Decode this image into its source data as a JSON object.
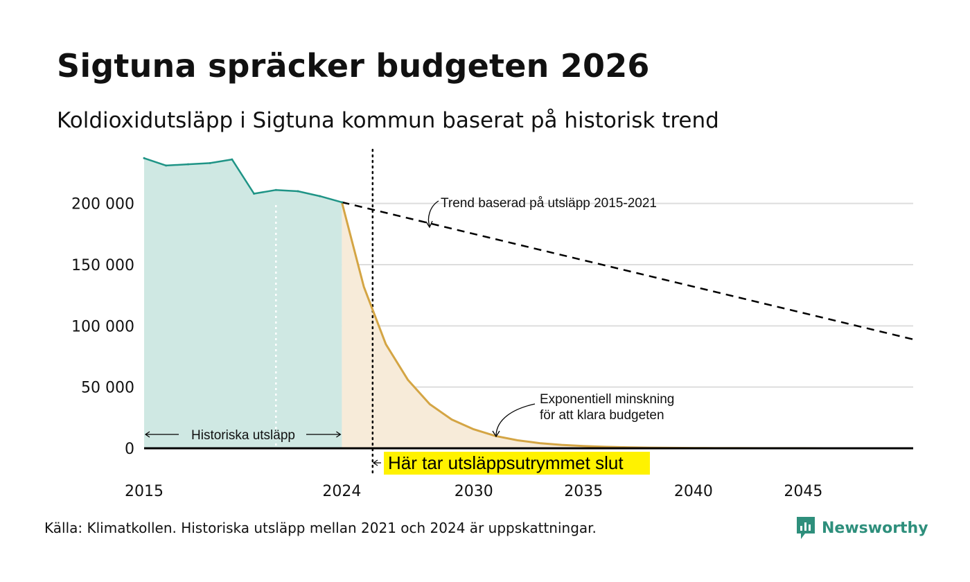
{
  "title": "Sigtuna spräcker budgeten 2026",
  "subtitle": "Koldioxidutsläpp i Sigtuna kommun baserat på historisk trend",
  "source": "Källa: Klimatkollen. Historiska utsläpp mellan 2021 och 2024 är uppskattningar.",
  "brand": "Newsworthy",
  "colors": {
    "historical": "#1f9486",
    "historical_fill": "#cfe8e3",
    "reduction": "#d4a544",
    "reduction_fill": "#f7ebd9",
    "trend": "#000000",
    "highlight": "#fff200",
    "grid": "#dddddd",
    "brand": "#2e8f7c"
  },
  "icons": [
    "newsworthy-logo-icon"
  ],
  "chart_data": {
    "type": "area",
    "xlim": [
      2015,
      2050
    ],
    "ylim": [
      0,
      240000
    ],
    "x_ticks": [
      2015,
      2024,
      2030,
      2035,
      2040,
      2045
    ],
    "x_tick_labels": [
      "2015",
      "2024",
      "2030",
      "2035",
      "2040",
      "2045"
    ],
    "y_ticks": [
      0,
      50000,
      100000,
      150000,
      200000
    ],
    "y_tick_labels": [
      "0",
      "50 000",
      "100 000",
      "150 000",
      "200 000"
    ],
    "grid": "horizontal",
    "series": [
      {
        "x": [
          2015,
          2016,
          2017,
          2018,
          2019,
          2020,
          2021,
          2022,
          2023,
          2024
        ],
        "y": [
          237000,
          231000,
          232000,
          233000,
          236000,
          208000,
          211000,
          210000,
          206000,
          201000
        ]
      },
      {
        "x": [
          2024,
          2025,
          2026,
          2027,
          2028,
          2029,
          2030,
          2031,
          2032,
          2033,
          2034,
          2035,
          2036,
          2037,
          2038,
          2039,
          2040,
          2041,
          2042,
          2043,
          2044,
          2045,
          2046,
          2047,
          2048,
          2049,
          2050
        ],
        "y": [
          201000,
          132000,
          85000,
          56000,
          36000,
          23500,
          15500,
          10000,
          6500,
          4200,
          2800,
          1800,
          1200,
          800,
          500,
          330,
          220,
          150,
          100,
          65,
          45,
          30,
          20,
          13,
          9,
          6,
          4
        ]
      },
      {
        "x": [
          2024,
          2050
        ],
        "y": [
          201000,
          89000
        ]
      }
    ],
    "markers": [
      {
        "x": 2021,
        "style": "dotted-white"
      },
      {
        "x": 2025.4,
        "style": "dotted-black"
      }
    ],
    "annotations": [
      {
        "text": "Trend baserad på utsläpp 2015-2021"
      },
      {
        "lines": [
          "Exponentiell minskning",
          "för att klara budgeten"
        ]
      },
      {
        "text": "Historiska utsläpp"
      },
      {
        "text": "Här tar utsläppsutrymmet slut"
      }
    ]
  }
}
